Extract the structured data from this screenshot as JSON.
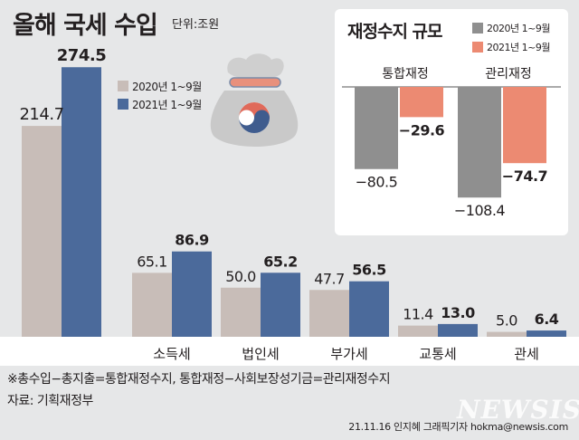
{
  "title": "올해 국세 수입",
  "unit_label": "단위:조원",
  "legend": [
    "2020년 1~9월",
    "2021년 1~9월"
  ],
  "colors": {
    "y2020": "#c8bdb8",
    "y2021": "#4b6a9b",
    "inset2020": "#8f8f8f",
    "inset2021": "#ec8a72",
    "panel": "#e6e7e8"
  },
  "icon": "money-bag-icon",
  "chart_data": [
    {
      "type": "bar",
      "title": "올해 국세 수입",
      "unit": "조원",
      "categories": [
        "",
        "소득세",
        "법인세",
        "부가세",
        "교통세",
        "관세"
      ],
      "category_note": "first pair is total tax revenue (unlabeled)",
      "series": [
        {
          "name": "2020년 1~9월",
          "values": [
            214.7,
            65.1,
            50.0,
            47.7,
            11.4,
            5.0
          ],
          "labels": [
            "214.7",
            "65.1",
            "50.0",
            "47.7",
            "11.4",
            "5.0"
          ]
        },
        {
          "name": "2021년 1~9월",
          "values": [
            274.5,
            86.9,
            65.2,
            56.5,
            13.0,
            6.4
          ],
          "labels": [
            "274.5",
            "86.9",
            "65.2",
            "56.5",
            "13.0",
            "6.4"
          ]
        }
      ],
      "ylim": [
        0,
        295
      ],
      "grid": false,
      "legend_position": "top-left"
    },
    {
      "type": "bar",
      "title": "재정수지 규모",
      "categories": [
        "통합재정",
        "관리재정"
      ],
      "series": [
        {
          "name": "2020년 1~9월",
          "values": [
            -80.5,
            -108.4
          ],
          "labels": [
            "−80.5",
            "−108.4"
          ]
        },
        {
          "name": "2021년 1~9월",
          "values": [
            -29.6,
            -74.7
          ],
          "labels": [
            "−29.6",
            "−74.7"
          ]
        }
      ],
      "ylim": [
        -110,
        0
      ],
      "grid": false,
      "legend_position": "top-right"
    }
  ],
  "footnote": "※총수입−총지출=통합재정수지,  통합재정−사회보장성기금=관리재정수지",
  "source": "자료:  기획재정부",
  "credit": "21.11.16  인지혜  그래픽기자  hokma@newsis.com",
  "watermark": "NEWSIS"
}
